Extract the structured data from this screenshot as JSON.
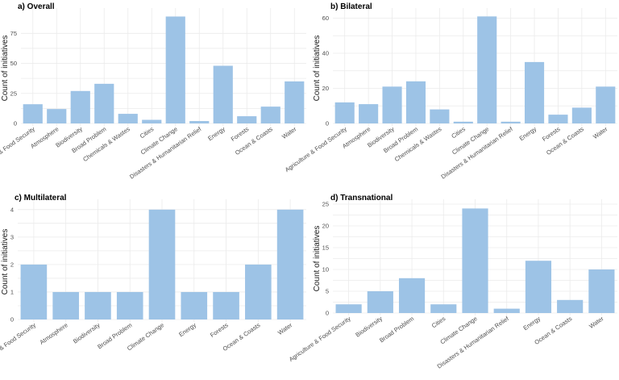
{
  "chart_data": [
    {
      "type": "bar",
      "title": "a) Overall",
      "xlabel": "",
      "ylabel": "Count of initiatives",
      "ylim": [
        0,
        92
      ],
      "yticks": [
        0,
        25,
        50,
        75
      ],
      "grid": true,
      "categories": [
        "Agriculture & Food Security",
        "Atmosphere",
        "Biodiversity",
        "Broad Problem",
        "Chemicals & Wastes",
        "Cities",
        "Climate Change",
        "Disasters & Humanitarian Relief",
        "Energy",
        "Forests",
        "Ocean & Coasts",
        "Water"
      ],
      "values": [
        16,
        12,
        27,
        33,
        8,
        3,
        89,
        2,
        48,
        6,
        14,
        35
      ]
    },
    {
      "type": "bar",
      "title": "b) Bilateral",
      "xlabel": "",
      "ylabel": "Count of initiatives",
      "ylim": [
        0,
        63
      ],
      "yticks": [
        0,
        20,
        40,
        60
      ],
      "grid": true,
      "categories": [
        "Agriculture & Food Security",
        "Atmosphere",
        "Biodiversity",
        "Broad Problem",
        "Chemicals & Wastes",
        "Cities",
        "Climate Change",
        "Disasters & Humanitarian Relief",
        "Energy",
        "Forests",
        "Ocean & Coasts",
        "Water"
      ],
      "values": [
        12,
        11,
        21,
        24,
        8,
        1,
        61,
        1,
        35,
        5,
        9,
        21
      ]
    },
    {
      "type": "bar",
      "title": "c) Multilateral",
      "xlabel": "",
      "ylabel": "Count of initiatives",
      "ylim": [
        0,
        4.2
      ],
      "yticks": [
        0,
        1,
        2,
        3,
        4
      ],
      "grid": true,
      "categories": [
        "Agriculture & Food Security",
        "Atmosphere",
        "Biodiversity",
        "Broad Problem",
        "Climate Change",
        "Energy",
        "Forests",
        "Ocean & Coasts",
        "Water"
      ],
      "values": [
        2,
        1,
        1,
        1,
        4,
        1,
        1,
        2,
        4
      ]
    },
    {
      "type": "bar",
      "title": "d) Transnational",
      "xlabel": "",
      "ylabel": "Count of initiatives",
      "ylim": [
        0,
        25
      ],
      "yticks": [
        0,
        5,
        10,
        15,
        20,
        25
      ],
      "grid": true,
      "categories": [
        "Agriculture & Food Security",
        "Biodiversity",
        "Broad Problem",
        "Cities",
        "Climate Change",
        "Disasters & Humanitarian Relief",
        "Energy",
        "Ocean & Coasts",
        "Water"
      ],
      "values": [
        2,
        5,
        8,
        2,
        24,
        1,
        12,
        3,
        10
      ]
    }
  ],
  "colors": {
    "bar": "#9dc3e6",
    "grid": "#ebebeb",
    "text": "#4d4d4d"
  }
}
